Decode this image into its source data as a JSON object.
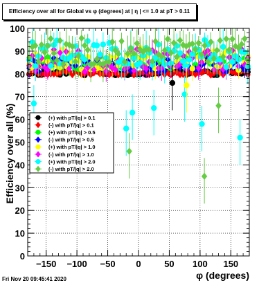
{
  "chart_data": {
    "type": "scatter",
    "title": "Efficiency over all for Global vs φ (degrees) at | η | <= 1.0 at pT > 0.11",
    "xlabel": "φ (degrees)",
    "ylabel": "Efficiency over all (%)",
    "xlim": [
      -180,
      180
    ],
    "ylim": [
      0,
      100
    ],
    "xticks": [
      -150,
      -100,
      -50,
      0,
      50,
      100,
      150
    ],
    "yticks": [
      0,
      10,
      20,
      30,
      40,
      50,
      60,
      70,
      80,
      90,
      100
    ],
    "grid": true,
    "legend_position": "lower-left",
    "series": [
      {
        "name": "(+) with pT/|q| > 0.1",
        "color": "#000000",
        "marker": "circle",
        "typical": 80.5,
        "spread": 1.2,
        "seed": 11,
        "err": 1.0
      },
      {
        "name": "(-) with pT/|q| > 0.1",
        "color": "#ff0000",
        "marker": "diamond",
        "typical": 80.5,
        "spread": 1.0,
        "seed": 23,
        "err": 1.0
      },
      {
        "name": "(+) with pT/|q| > 0.5",
        "color": "#00ff00",
        "marker": "circle",
        "typical": 85.5,
        "spread": 3.5,
        "seed": 37,
        "err": 3.0
      },
      {
        "name": "(-) with pT/|q| > 0.5",
        "color": "#0000ff",
        "marker": "diamond",
        "typical": 84.0,
        "spread": 3.0,
        "seed": 41,
        "err": 3.0
      },
      {
        "name": "(+) with pT/|q| > 1.0",
        "color": "#ffff00",
        "marker": "circle",
        "typical": 86.5,
        "spread": 5.0,
        "seed": 53,
        "err": 4.0
      },
      {
        "name": "(-) with pT/|q| > 1.0",
        "color": "#ff00ff",
        "marker": "diamond",
        "typical": 86.0,
        "spread": 5.0,
        "seed": 67,
        "err": 4.0
      },
      {
        "name": "(+) with pT/|q| > 2.0",
        "color": "#00ffff",
        "marker": "circle",
        "typical": 89.0,
        "spread": 6.0,
        "seed": 79,
        "err": 6.0
      },
      {
        "name": "(-) with pT/|q| > 2.0",
        "color": "#66cc44",
        "marker": "diamond",
        "typical": 90.0,
        "spread": 6.0,
        "seed": 83,
        "err": 6.0
      }
    ],
    "outliers": [
      {
        "series": 6,
        "x": -170,
        "y": 67
      },
      {
        "series": 6,
        "x": -10,
        "y": 63
      },
      {
        "series": 6,
        "x": 25,
        "y": 65
      },
      {
        "series": 6,
        "x": 75,
        "y": 71
      },
      {
        "series": 6,
        "x": 103,
        "y": 58
      },
      {
        "series": 6,
        "x": 165,
        "y": 52
      },
      {
        "series": 6,
        "x": -20,
        "y": 56
      },
      {
        "series": 7,
        "x": -15,
        "y": 46
      },
      {
        "series": 7,
        "x": 107,
        "y": 35
      },
      {
        "series": 7,
        "x": -60,
        "y": 53
      },
      {
        "series": 7,
        "x": 130,
        "y": 66
      },
      {
        "series": 0,
        "x": 55,
        "y": 76
      },
      {
        "series": 4,
        "x": 78,
        "y": 75
      }
    ]
  },
  "footer_text": "Fri Nov 20 09:45:41 2020"
}
